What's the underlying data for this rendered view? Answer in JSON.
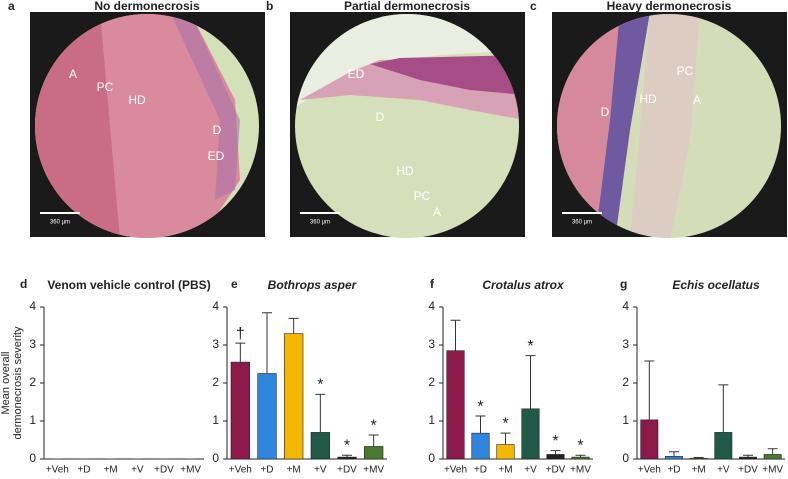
{
  "images": [
    {
      "letter": "a",
      "title": "No dermonecrosis",
      "labels": [
        "A",
        "PC",
        "HD",
        "D",
        "ED"
      ],
      "scale": "360 µm"
    },
    {
      "letter": "b",
      "title": "Partial dermonecrosis",
      "labels": [
        "ED",
        "D",
        "HD",
        "PC",
        "A"
      ],
      "scale": "360 µm"
    },
    {
      "letter": "c",
      "title": "Heavy dermonecrosis",
      "labels": [
        "PC",
        "D",
        "HD",
        "A"
      ],
      "scale": "360 µm"
    }
  ],
  "chart_data": [
    {
      "type": "bar",
      "letter": "d",
      "title": "Venom vehicle control (PBS)",
      "italic": false,
      "ylabel": [
        "Mean overall",
        "dermonecrosis severity"
      ],
      "categories": [
        "+Veh",
        "+D",
        "+M",
        "+V",
        "+DV",
        "+MV"
      ],
      "values": [
        0,
        0,
        0,
        0,
        0,
        0
      ],
      "errors": [
        0,
        0,
        0,
        0,
        0,
        0
      ],
      "colors": [
        "#8b1a4a",
        "#2e86de",
        "#f5b800",
        "#1f5a48",
        "#222222",
        "#4a7a2e"
      ],
      "markers": [
        null,
        null,
        null,
        null,
        null,
        null
      ],
      "ylim": [
        0,
        4
      ],
      "yticks": [
        0,
        1,
        2,
        3,
        4
      ]
    },
    {
      "type": "bar",
      "letter": "e",
      "title": "Bothrops asper",
      "italic": true,
      "categories": [
        "+Veh",
        "+D",
        "+M",
        "+V",
        "+DV",
        "+MV"
      ],
      "values": [
        2.55,
        2.25,
        3.3,
        0.7,
        0.05,
        0.33
      ],
      "errors": [
        0.5,
        1.6,
        0.4,
        1.0,
        0.05,
        0.3
      ],
      "colors": [
        "#8b1a4a",
        "#2e86de",
        "#f5b800",
        "#1f5a48",
        "#222222",
        "#4a7a2e"
      ],
      "markers": [
        "†",
        null,
        null,
        "*",
        "*",
        "*"
      ],
      "ylim": [
        0,
        4
      ],
      "yticks": [
        0,
        1,
        2,
        3,
        4
      ]
    },
    {
      "type": "bar",
      "letter": "f",
      "title": "Crotalus atrox",
      "italic": true,
      "categories": [
        "+Veh",
        "+D",
        "+M",
        "+V",
        "+DV",
        "+MV"
      ],
      "values": [
        2.85,
        0.68,
        0.38,
        1.32,
        0.12,
        0.05
      ],
      "errors": [
        0.8,
        0.45,
        0.3,
        1.4,
        0.1,
        0.05
      ],
      "colors": [
        "#8b1a4a",
        "#2e86de",
        "#f5b800",
        "#1f5a48",
        "#222222",
        "#4a7a2e"
      ],
      "markers": [
        null,
        "*",
        "*",
        "*",
        "*",
        "*"
      ],
      "ylim": [
        0,
        4
      ],
      "yticks": [
        0,
        1,
        2,
        3,
        4
      ]
    },
    {
      "type": "bar",
      "letter": "g",
      "title": "Echis ocellatus",
      "italic": true,
      "categories": [
        "+Veh",
        "+D",
        "+M",
        "+V",
        "+DV",
        "+MV"
      ],
      "values": [
        1.03,
        0.07,
        0.02,
        0.7,
        0.05,
        0.12
      ],
      "errors": [
        1.55,
        0.12,
        0.02,
        1.25,
        0.05,
        0.15
      ],
      "colors": [
        "#8b1a4a",
        "#2e86de",
        "#f5b800",
        "#1f5a48",
        "#222222",
        "#4a7a2e"
      ],
      "markers": [
        null,
        null,
        null,
        null,
        null,
        null
      ],
      "ylim": [
        0,
        4
      ],
      "yticks": [
        0,
        1,
        2,
        3,
        4
      ]
    }
  ]
}
